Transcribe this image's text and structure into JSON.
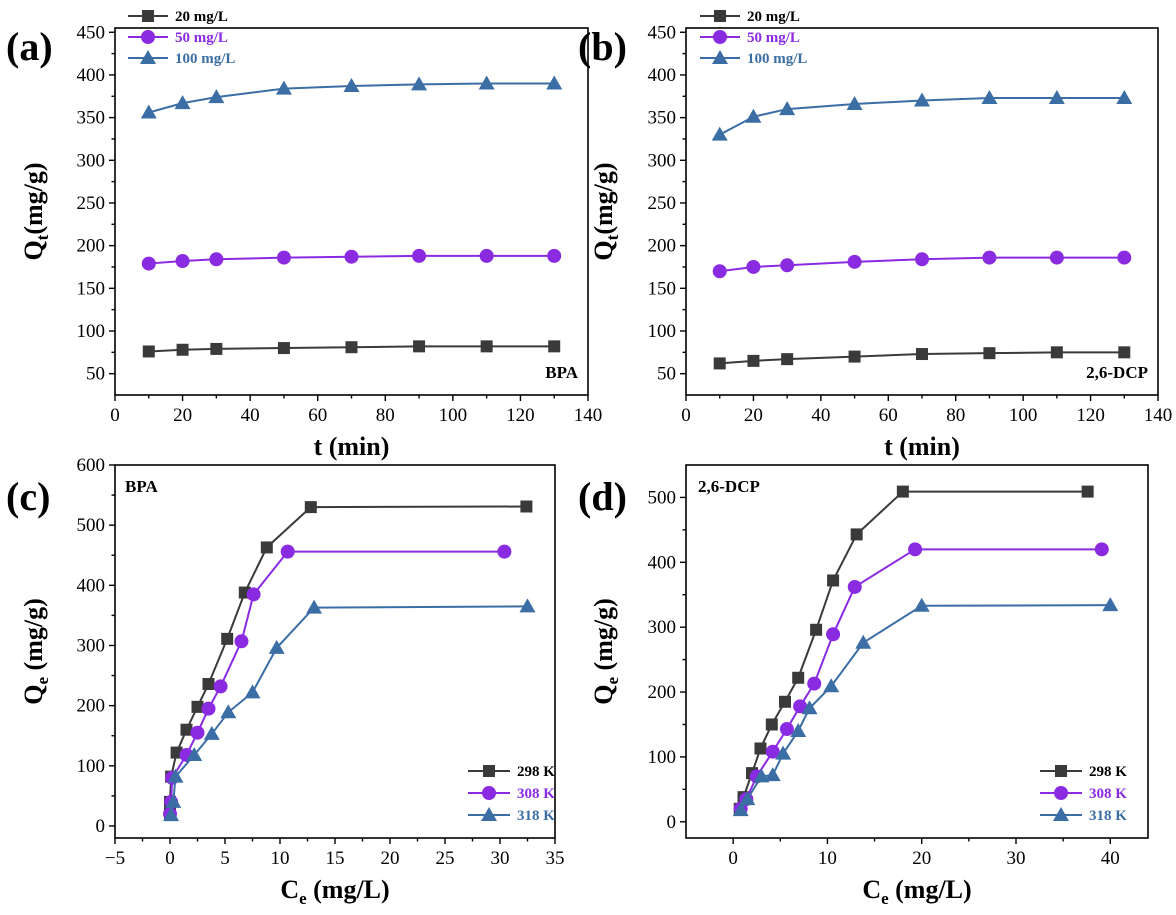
{
  "chart_data": [
    {
      "panel": "(a)",
      "type": "line",
      "annotation": "BPA",
      "xlabel": "t (min)",
      "ylabel_main": "Q",
      "ylabel_sub": "t",
      "ylabel_rest": "(mg/g)",
      "xlim": [
        0,
        140
      ],
      "ylim": [
        25,
        455
      ],
      "xticks": [
        0,
        20,
        40,
        60,
        80,
        100,
        120,
        140
      ],
      "yticks": [
        50,
        100,
        150,
        200,
        250,
        300,
        350,
        400,
        450
      ],
      "legend_position": "top-left",
      "x": [
        10,
        20,
        30,
        50,
        70,
        90,
        110,
        130
      ],
      "series": [
        {
          "name": "20 mg/L",
          "marker": "square",
          "color": "#3a3a3a",
          "values": [
            76,
            78,
            79,
            80,
            81,
            82,
            82,
            82
          ]
        },
        {
          "name": "50 mg/L",
          "marker": "circle",
          "color": "#8a2be2",
          "values": [
            179,
            182,
            184,
            186,
            187,
            188,
            188,
            188
          ]
        },
        {
          "name": "100 mg/L",
          "marker": "triangle",
          "color": "#3b6ea5",
          "values": [
            356,
            367,
            374,
            384,
            387,
            389,
            390,
            390
          ]
        }
      ]
    },
    {
      "panel": "(b)",
      "type": "line",
      "annotation": "2,6-DCP",
      "xlabel": "t (min)",
      "ylabel_main": "Q",
      "ylabel_sub": "t",
      "ylabel_rest": "(mg/g)",
      "xlim": [
        0,
        140
      ],
      "ylim": [
        25,
        455
      ],
      "xticks": [
        0,
        20,
        40,
        60,
        80,
        100,
        120,
        140
      ],
      "yticks": [
        50,
        100,
        150,
        200,
        250,
        300,
        350,
        400,
        450
      ],
      "legend_position": "top-left",
      "x": [
        10,
        20,
        30,
        50,
        70,
        90,
        110,
        130
      ],
      "series": [
        {
          "name": "20 mg/L",
          "marker": "square",
          "color": "#3a3a3a",
          "values": [
            62,
            65,
            67,
            70,
            73,
            74,
            75,
            75
          ]
        },
        {
          "name": "50 mg/L",
          "marker": "circle",
          "color": "#8a2be2",
          "values": [
            170,
            175,
            177,
            181,
            184,
            186,
            186,
            186
          ]
        },
        {
          "name": "100 mg/L",
          "marker": "triangle",
          "color": "#3b6ea5",
          "values": [
            330,
            351,
            360,
            366,
            370,
            373,
            373,
            373
          ]
        }
      ]
    },
    {
      "panel": "(c)",
      "type": "line",
      "annotation": "BPA",
      "xlabel_main": "C",
      "xlabel_sub": "e",
      "xlabel_rest": " (mg/L)",
      "ylabel_main": "Q",
      "ylabel_sub": "e",
      "ylabel_rest": " (mg/g)",
      "xlim": [
        -5,
        35
      ],
      "ylim": [
        -20,
        600
      ],
      "xticks": [
        -5,
        0,
        5,
        10,
        15,
        20,
        25,
        30,
        35
      ],
      "yticks": [
        0,
        100,
        200,
        300,
        400,
        500,
        600
      ],
      "legend_position": "bottom-right",
      "series": [
        {
          "name": "298 K",
          "marker": "square",
          "color": "#3a3a3a",
          "x": [
            0,
            0,
            0.1,
            0.6,
            1.5,
            2.5,
            3.5,
            5.2,
            6.8,
            8.8,
            12.8,
            32.4
          ],
          "values": [
            20,
            40,
            82,
            122,
            160,
            198,
            236,
            311,
            388,
            463,
            530,
            531
          ]
        },
        {
          "name": "308 K",
          "marker": "circle",
          "color": "#8a2be2",
          "x": [
            0,
            0.1,
            0.2,
            1.5,
            2.5,
            3.5,
            4.6,
            6.5,
            7.6,
            10.7,
            30.4
          ],
          "values": [
            20,
            40,
            80,
            118,
            155,
            195,
            232,
            307,
            385,
            456,
            456
          ]
        },
        {
          "name": "318 K",
          "marker": "triangle",
          "color": "#3b6ea5",
          "x": [
            0.1,
            0.3,
            0.5,
            2.2,
            3.8,
            5.3,
            7.5,
            9.7,
            13.1,
            32.5
          ],
          "values": [
            18,
            40,
            82,
            118,
            153,
            189,
            222,
            296,
            363,
            365
          ]
        }
      ]
    },
    {
      "panel": "(d)",
      "type": "line",
      "annotation": "2,6-DCP",
      "xlabel_main": "C",
      "xlabel_sub": "e",
      "xlabel_rest": " (mg/L)",
      "ylabel_main": "Q",
      "ylabel_sub": "e",
      "ylabel_rest": " (mg/g)",
      "xlim": [
        -5,
        44
      ],
      "ylim": [
        -25,
        550
      ],
      "xticks": [
        0,
        10,
        20,
        30,
        40
      ],
      "yticks": [
        0,
        100,
        200,
        300,
        400,
        500
      ],
      "legend_position": "bottom-right",
      "series": [
        {
          "name": "298 K",
          "marker": "square",
          "color": "#3a3a3a",
          "x": [
            0.7,
            1.1,
            2.0,
            2.9,
            4.1,
            5.5,
            6.9,
            8.8,
            10.6,
            13.1,
            18.0,
            37.6
          ],
          "values": [
            20,
            38,
            75,
            113,
            150,
            185,
            222,
            296,
            372,
            443,
            509,
            509
          ]
        },
        {
          "name": "308 K",
          "marker": "circle",
          "color": "#8a2be2",
          "x": [
            0.8,
            1.4,
            2.5,
            4.2,
            5.7,
            7.1,
            8.6,
            10.6,
            12.9,
            19.3,
            39.1
          ],
          "values": [
            20,
            35,
            70,
            108,
            143,
            178,
            213,
            289,
            362,
            420,
            420
          ]
        },
        {
          "name": "318 K",
          "marker": "triangle",
          "color": "#3b6ea5",
          "x": [
            0.8,
            1.5,
            3.0,
            4.2,
            5.3,
            6.9,
            8.1,
            10.4,
            13.8,
            20.0,
            40.0
          ],
          "values": [
            18,
            35,
            70,
            72,
            105,
            140,
            175,
            209,
            276,
            333,
            334
          ]
        }
      ]
    }
  ]
}
